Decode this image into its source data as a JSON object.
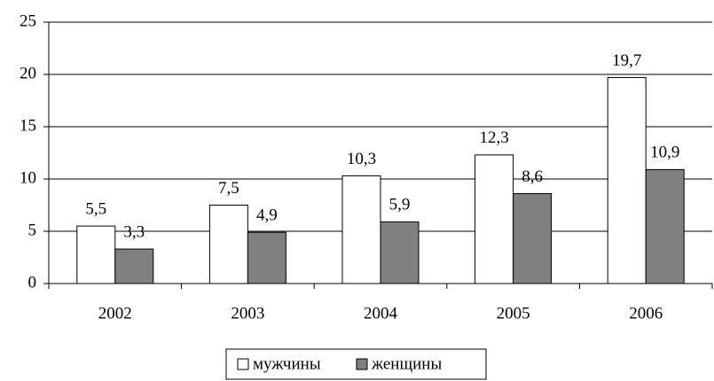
{
  "chart_data": {
    "type": "bar",
    "categories": [
      "2002",
      "2003",
      "2004",
      "2005",
      "2006"
    ],
    "series": [
      {
        "name": "мужчины",
        "color": "#ffffff",
        "values": [
          5.5,
          7.5,
          10.3,
          12.3,
          19.7
        ],
        "value_labels": [
          "5,5",
          "7,5",
          "10,3",
          "12,3",
          "19,7"
        ]
      },
      {
        "name": "женщины",
        "color": "#808080",
        "values": [
          3.3,
          4.9,
          5.9,
          8.6,
          10.9
        ],
        "value_labels": [
          "3,3",
          "4,9",
          "5,9",
          "8,6",
          "10,9"
        ]
      }
    ],
    "ylim": [
      0,
      25
    ],
    "yticks": [
      0,
      5,
      10,
      15,
      20,
      25
    ],
    "grid": true,
    "legend": "bottom"
  }
}
